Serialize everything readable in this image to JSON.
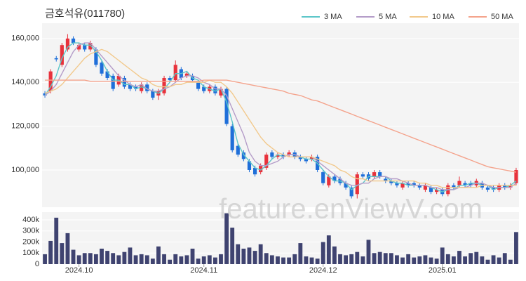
{
  "chart_data": [
    {
      "type": "candlestick",
      "title": "금호석유(011780)",
      "watermark": "feature.enViewV.com",
      "up_color": "#e8323c",
      "down_color": "#1f6fd9",
      "grid": true,
      "legend": "top-right",
      "ylim": [
        83000,
        167000
      ],
      "yticks": [
        {
          "value": 100000,
          "label": "100,000"
        },
        {
          "value": 120000,
          "label": "120,000"
        },
        {
          "value": 140000,
          "label": "140,000"
        },
        {
          "value": 160000,
          "label": "160,000"
        }
      ],
      "open": [
        135000,
        136000,
        151000,
        148000,
        155000,
        160000,
        155000,
        157000,
        155000,
        155000,
        149000,
        145000,
        143000,
        139000,
        142000,
        139000,
        138000,
        136000,
        139000,
        136000,
        134000,
        135000,
        142000,
        141000,
        146000,
        143000,
        143000,
        140000,
        138000,
        136000,
        138000,
        134000,
        137000,
        120000,
        111000,
        108000,
        104000,
        101000,
        99000,
        101000,
        108000,
        106000,
        107000,
        107000,
        108000,
        106000,
        105000,
        105000,
        106000,
        99000,
        93000,
        97000,
        96000,
        94000,
        92000,
        89000,
        98000,
        98000,
        97000,
        99000,
        96000,
        95000,
        94000,
        92000,
        94000,
        94000,
        93000,
        91000,
        92000,
        90000,
        91000,
        89000,
        93000,
        93000,
        94000,
        94000,
        93000,
        94000,
        92000,
        92000,
        91000,
        93000,
        92000,
        94000
      ],
      "high": [
        136000,
        146000,
        152000,
        158000,
        162000,
        161000,
        158000,
        158000,
        159000,
        156000,
        150000,
        146000,
        144000,
        144000,
        143000,
        140000,
        139000,
        140000,
        140000,
        137000,
        137000,
        143000,
        143000,
        150000,
        147000,
        145000,
        144000,
        141000,
        139000,
        139000,
        139000,
        138000,
        138000,
        121000,
        112000,
        109000,
        105000,
        102000,
        103000,
        108000,
        109000,
        108000,
        108000,
        109000,
        109000,
        107000,
        106000,
        107000,
        107000,
        100000,
        98000,
        98000,
        97000,
        95000,
        93000,
        99000,
        99000,
        99000,
        100000,
        100000,
        97000,
        96000,
        95000,
        95000,
        95000,
        95000,
        94000,
        94000,
        93000,
        92000,
        92000,
        94000,
        94000,
        97000,
        95000,
        95000,
        96000,
        95000,
        93000,
        93000,
        94000,
        94000,
        94000,
        101000
      ],
      "low": [
        133000,
        135000,
        149500,
        147000,
        154000,
        157000,
        154000,
        154000,
        154000,
        147000,
        143000,
        141000,
        136000,
        138000,
        137000,
        136000,
        136000,
        135000,
        135000,
        132000,
        132000,
        134000,
        140000,
        140000,
        141000,
        142000,
        140000,
        136000,
        135000,
        135000,
        134000,
        133000,
        120000,
        108000,
        106000,
        104000,
        99000,
        97000,
        98000,
        100000,
        105000,
        105000,
        105000,
        106000,
        105000,
        104000,
        103000,
        104000,
        99000,
        93000,
        92000,
        94000,
        93000,
        91000,
        87000,
        87000,
        96000,
        95000,
        96000,
        96000,
        94000,
        93000,
        92000,
        91000,
        92000,
        92000,
        91000,
        90000,
        89000,
        89000,
        88000,
        88000,
        91000,
        92000,
        92000,
        92000,
        92000,
        91000,
        90000,
        90000,
        90000,
        91000,
        91000,
        93000
      ],
      "close": [
        134000,
        145000,
        150500,
        157000,
        160000,
        158000,
        157000,
        155000,
        158000,
        148000,
        144000,
        142000,
        137000,
        143000,
        138000,
        137000,
        137000,
        139000,
        136000,
        133000,
        136000,
        142000,
        141000,
        148000,
        142000,
        144000,
        141000,
        137000,
        136000,
        138000,
        135000,
        137000,
        121000,
        109000,
        107000,
        105000,
        100000,
        98000,
        102000,
        107000,
        106000,
        107000,
        106000,
        108000,
        106000,
        105000,
        104000,
        106000,
        100000,
        94000,
        97000,
        95000,
        94000,
        92000,
        88000,
        98000,
        97000,
        96000,
        99000,
        97000,
        95000,
        94000,
        93000,
        94000,
        93000,
        93000,
        92000,
        93000,
        90000,
        91000,
        89000,
        93000,
        92000,
        95000,
        93000,
        93000,
        95000,
        92000,
        91000,
        91000,
        93000,
        92000,
        93000,
        100000
      ],
      "series": [
        {
          "name": "3 MA",
          "color": "#5cc6c8",
          "values": [
            134000,
            138000,
            143000,
            151000,
            156000,
            158000,
            158000,
            157000,
            157000,
            154000,
            150000,
            145000,
            141000,
            141000,
            139000,
            139000,
            137000,
            138000,
            137000,
            136000,
            135000,
            137000,
            140000,
            144000,
            144000,
            145000,
            142000,
            141000,
            138000,
            137000,
            136000,
            137000,
            131000,
            122000,
            112000,
            107000,
            104000,
            101000,
            100000,
            102000,
            105000,
            107000,
            106000,
            107000,
            107000,
            106000,
            105000,
            105000,
            103000,
            100000,
            97000,
            95000,
            95000,
            94000,
            91000,
            93000,
            94000,
            97000,
            97000,
            97000,
            97000,
            95000,
            94000,
            94000,
            93000,
            93000,
            93000,
            93000,
            92000,
            91000,
            90000,
            91000,
            91000,
            93000,
            93000,
            94000,
            94000,
            93000,
            93000,
            91000,
            92000,
            92000,
            93000,
            95000
          ]
        },
        {
          "name": "5 MA",
          "color": "#b49cc8",
          "values": [
            134000,
            136000,
            139000,
            144000,
            149000,
            154000,
            157000,
            158000,
            158000,
            155000,
            152000,
            149000,
            146000,
            143000,
            141000,
            139000,
            138000,
            139000,
            137000,
            136000,
            136000,
            137000,
            138000,
            140000,
            142000,
            143000,
            143000,
            142000,
            140000,
            139000,
            137000,
            137000,
            134000,
            128000,
            122000,
            116000,
            108000,
            104000,
            102000,
            102000,
            103000,
            104000,
            106000,
            107000,
            107000,
            106000,
            106000,
            106000,
            104000,
            102000,
            100000,
            98000,
            96000,
            94000,
            93000,
            93000,
            94000,
            94000,
            96000,
            97000,
            97000,
            96000,
            96000,
            95000,
            94000,
            93000,
            93000,
            93000,
            92000,
            92000,
            91000,
            91000,
            91000,
            92000,
            92000,
            93000,
            94000,
            94000,
            93000,
            92000,
            92000,
            92000,
            92000,
            94000
          ]
        },
        {
          "name": "10 MA",
          "color": "#f2c98c",
          "values": [
            135000,
            136000,
            137000,
            139000,
            142000,
            145000,
            148000,
            151000,
            153000,
            154000,
            155000,
            154000,
            152000,
            150000,
            148000,
            146000,
            144000,
            142000,
            141000,
            139000,
            138000,
            138000,
            138000,
            139000,
            139000,
            140000,
            140000,
            140000,
            140000,
            141000,
            140000,
            140000,
            138000,
            135000,
            131000,
            127000,
            123000,
            119000,
            115000,
            112000,
            110000,
            108000,
            107000,
            106000,
            106000,
            106000,
            106000,
            106000,
            105000,
            104000,
            103000,
            102000,
            100000,
            99000,
            97000,
            96000,
            96000,
            95000,
            95000,
            95000,
            95000,
            95000,
            95000,
            95000,
            95000,
            95000,
            94000,
            94000,
            93000,
            93000,
            92000,
            92000,
            92000,
            92000,
            92000,
            92000,
            92000,
            93000,
            93000,
            93000,
            93000,
            93000,
            93000,
            93000
          ]
        },
        {
          "name": "50 MA",
          "color": "#f4a38c",
          "values": [
            141000,
            141000,
            141000,
            141000,
            141000,
            141000,
            141000,
            141000,
            140500,
            140500,
            140500,
            140500,
            140500,
            140500,
            140500,
            140500,
            140500,
            140500,
            140500,
            140500,
            140500,
            140500,
            140500,
            140500,
            140500,
            140500,
            140500,
            140500,
            141000,
            141000,
            141000,
            141000,
            141000,
            140500,
            140000,
            139500,
            139000,
            138500,
            138000,
            137500,
            137000,
            136500,
            136000,
            135000,
            134500,
            134000,
            133000,
            132000,
            131500,
            130500,
            129500,
            128500,
            127500,
            126500,
            125500,
            124500,
            123500,
            122500,
            121500,
            120500,
            119500,
            118500,
            117500,
            116500,
            115500,
            114500,
            113500,
            112500,
            111500,
            110500,
            109500,
            108500,
            107500,
            106500,
            105500,
            104500,
            103500,
            102500,
            101500,
            101000,
            100500,
            100000,
            99500,
            99000
          ]
        }
      ]
    },
    {
      "type": "bar",
      "color": "#3f4370",
      "grid": true,
      "categories": [
        null,
        null,
        null,
        null,
        null,
        null,
        "2024.10",
        null,
        null,
        null,
        null,
        null,
        null,
        null,
        null,
        null,
        null,
        null,
        null,
        null,
        null,
        null,
        null,
        null,
        null,
        null,
        null,
        null,
        "2024.11",
        null,
        null,
        null,
        null,
        null,
        null,
        null,
        null,
        null,
        null,
        null,
        null,
        null,
        null,
        null,
        null,
        null,
        null,
        null,
        null,
        "2024.12",
        null,
        null,
        null,
        null,
        null,
        null,
        null,
        null,
        null,
        null,
        null,
        null,
        null,
        null,
        null,
        null,
        null,
        null,
        null,
        null,
        "2025.01",
        null,
        null,
        null,
        null,
        null,
        null,
        null,
        null,
        null,
        null,
        null,
        null,
        null
      ],
      "values": [
        90000,
        210000,
        420000,
        190000,
        280000,
        130000,
        80000,
        100000,
        100000,
        90000,
        140000,
        120000,
        100000,
        80000,
        110000,
        150000,
        80000,
        90000,
        80000,
        50000,
        160000,
        90000,
        40000,
        90000,
        70000,
        80000,
        140000,
        50000,
        70000,
        80000,
        60000,
        90000,
        460000,
        330000,
        180000,
        140000,
        150000,
        120000,
        180000,
        100000,
        80000,
        70000,
        60000,
        60000,
        90000,
        190000,
        70000,
        60000,
        50000,
        200000,
        260000,
        160000,
        90000,
        80000,
        90000,
        110000,
        70000,
        220000,
        100000,
        110000,
        100000,
        100000,
        80000,
        60000,
        90000,
        60000,
        70000,
        80000,
        60000,
        50000,
        150000,
        90000,
        70000,
        120000,
        70000,
        100000,
        110000,
        70000,
        40000,
        80000,
        60000,
        100000,
        40000,
        290000
      ],
      "ylim": [
        0,
        470000
      ],
      "yticks": [
        0,
        {
          "value": 100000,
          "label": "100k"
        },
        {
          "value": 200000,
          "label": "200k"
        },
        {
          "value": 300000,
          "label": "300k"
        },
        {
          "value": 400000,
          "label": "400k"
        }
      ]
    }
  ]
}
